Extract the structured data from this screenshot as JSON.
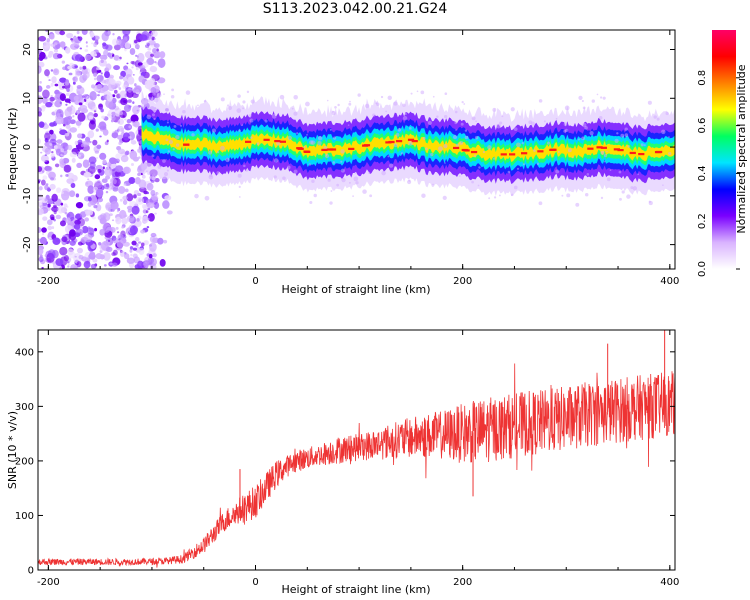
{
  "title": "S113.2023.042.00.21.G24",
  "chart_data": [
    {
      "type": "heatmap",
      "title": "S113.2023.042.00.21.G24",
      "xlabel": "Height of straight line (km)",
      "ylabel": "Frequency (Hz)",
      "xlim": [
        -210,
        405
      ],
      "ylim": [
        -25,
        24
      ],
      "xticks": [
        -200,
        0,
        200,
        400
      ],
      "yticks": [
        -20,
        -10,
        0,
        10,
        20
      ],
      "colorbar": {
        "label": "Normalized spectral amplitude",
        "range": [
          0.0,
          1.0
        ],
        "ticks": [
          0.0,
          0.2,
          0.4,
          0.6,
          0.8
        ],
        "colors": [
          "#ffffff",
          "#d9b3ff",
          "#7a00ff",
          "#0000ff",
          "#00e5ff",
          "#00ff60",
          "#ffff00",
          "#ff8000",
          "#ff0000",
          "#ff0066"
        ]
      },
      "noise_region": {
        "x": [
          -210,
          -95
        ],
        "y": [
          -25,
          24
        ]
      },
      "ridge": {
        "x": [
          -110,
          -90,
          -70,
          -50,
          -30,
          -10,
          10,
          30,
          50,
          70,
          90,
          110,
          130,
          150,
          170,
          190,
          210,
          230,
          250,
          270,
          290,
          310,
          330,
          350,
          370,
          390,
          405
        ],
        "y": [
          2.5,
          1.5,
          0.5,
          0.5,
          0.0,
          1.0,
          1.5,
          1.0,
          -1.0,
          -0.5,
          -0.5,
          0.5,
          1.0,
          1.5,
          0.0,
          0.0,
          -1.0,
          -1.5,
          -1.5,
          -1.0,
          -0.5,
          -1.0,
          0.0,
          -0.5,
          -1.5,
          -1.0,
          -1.0
        ]
      }
    },
    {
      "type": "line",
      "xlabel": "Height of straight line (km)",
      "ylabel": "SNR (10 * v/v)",
      "xlim": [
        -210,
        405
      ],
      "ylim": [
        0,
        440
      ],
      "xticks": [
        -200,
        0,
        200,
        400
      ],
      "yticks": [
        0,
        100,
        200,
        300,
        400
      ],
      "color": "#ee3333",
      "series": [
        {
          "x": [
            -210,
            -180,
            -150,
            -120,
            -90,
            -70,
            -50,
            -30,
            -15,
            -5,
            0,
            10,
            20,
            30,
            40,
            50,
            60,
            80,
            100,
            120,
            140,
            160,
            180,
            200,
            220,
            240,
            260,
            280,
            300,
            320,
            340,
            360,
            380,
            405
          ],
          "y": [
            15,
            15,
            15,
            15,
            16,
            20,
            45,
            90,
            110,
            120,
            125,
            150,
            175,
            190,
            200,
            205,
            210,
            220,
            225,
            232,
            240,
            245,
            248,
            250,
            255,
            262,
            268,
            272,
            278,
            285,
            290,
            295,
            300,
            305
          ],
          "noise_amplitude": [
            6,
            6,
            6,
            6,
            6,
            8,
            15,
            20,
            25,
            30,
            30,
            28,
            25,
            20,
            20,
            20,
            20,
            25,
            25,
            30,
            35,
            40,
            45,
            55,
            60,
            60,
            60,
            60,
            60,
            60,
            60,
            60,
            60,
            60
          ],
          "peaks": [
            [
              -15,
              185
            ],
            [
              340,
              415
            ],
            [
              395,
              440
            ],
            [
              210,
              135
            ]
          ]
        }
      ]
    }
  ]
}
